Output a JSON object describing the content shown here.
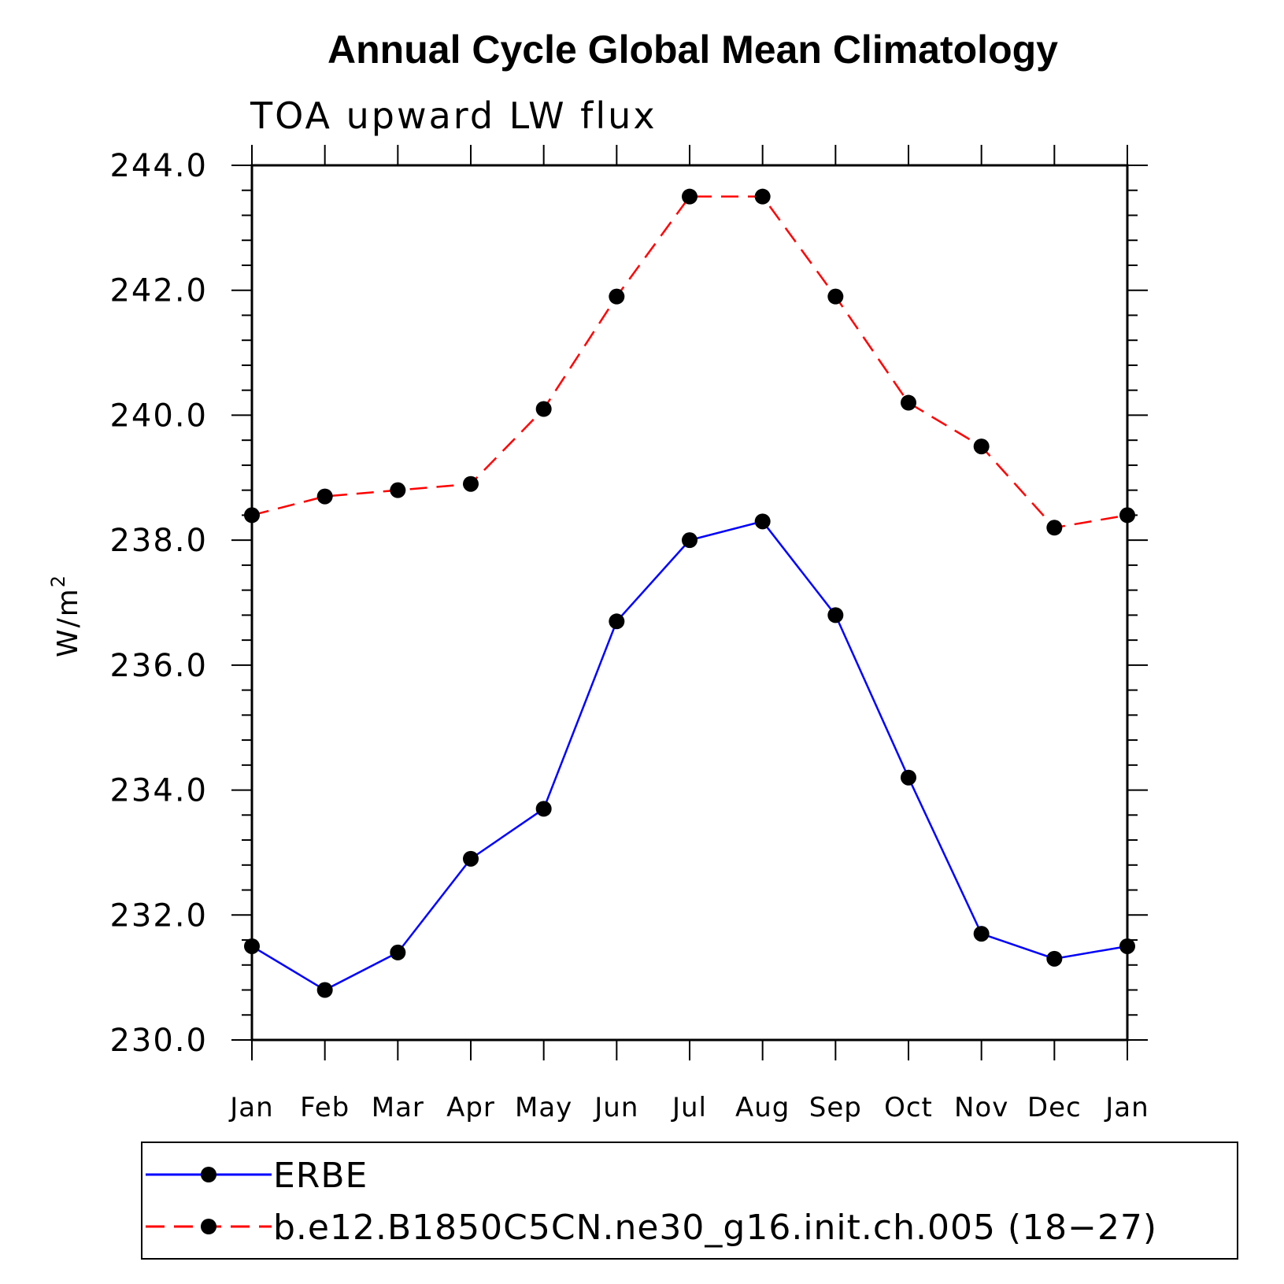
{
  "chart_data": {
    "type": "line",
    "title": "Annual Cycle Global Mean Climatology",
    "subtitle": "TOA upward LW flux",
    "ylabel": "W/m",
    "ylabel_superscript": "2",
    "xlabel": "",
    "categories": [
      "Jan",
      "Feb",
      "Mar",
      "Apr",
      "May",
      "Jun",
      "Jul",
      "Aug",
      "Sep",
      "Oct",
      "Nov",
      "Dec",
      "Jan"
    ],
    "ylim": [
      230.0,
      244.0
    ],
    "yticks": [
      "230.0",
      "232.0",
      "234.0",
      "236.0",
      "238.0",
      "240.0",
      "242.0",
      "244.0"
    ],
    "grid": false,
    "legend_position": "bottom",
    "series": [
      {
        "name": "ERBE",
        "color": "#0000ff",
        "line_style": "solid",
        "marker": "filled-circle",
        "values": [
          231.5,
          230.8,
          231.4,
          232.9,
          233.7,
          236.7,
          238.0,
          238.3,
          236.8,
          234.2,
          231.7,
          231.3,
          231.5
        ]
      },
      {
        "name": "b.e12.B1850C5CN.ne30_g16.init.ch.005 (18−27)",
        "color": "#ff0000",
        "line_style": "dashed",
        "marker": "filled-circle",
        "values": [
          238.4,
          238.7,
          238.8,
          238.9,
          240.1,
          241.9,
          243.5,
          243.5,
          241.9,
          240.2,
          239.5,
          238.2,
          238.4
        ]
      }
    ]
  }
}
